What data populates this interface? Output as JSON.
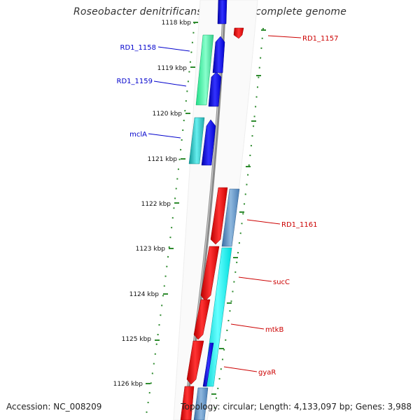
{
  "title": "Roseobacter denitrificans OCh 114, complete genome",
  "accession": "Accession: NC_008209",
  "stats": "Topology: circular; Length: 4,133,097 bp; Genes: 3,988",
  "colors": {
    "backbone": "#8a8a8a",
    "tick": "#2e8b2e",
    "forward_label": "#0000cc",
    "reverse_label": "#cc0000"
  },
  "ruler_labels": [
    "1118 kbp",
    "1119 kbp",
    "1120 kbp",
    "1121 kbp",
    "1122 kbp",
    "1123 kbp",
    "1124 kbp",
    "1125 kbp",
    "1126 kbp"
  ],
  "gene_labels": [
    {
      "text": "RD1_1157",
      "strand": "reverse"
    },
    {
      "text": "RD1_1158",
      "strand": "forward"
    },
    {
      "text": "RD1_1159",
      "strand": "forward"
    },
    {
      "text": "mclA",
      "strand": "forward"
    },
    {
      "text": "RD1_1161",
      "strand": "reverse"
    },
    {
      "text": "sucC",
      "strand": "reverse"
    },
    {
      "text": "mtkB",
      "strand": "reverse"
    },
    {
      "text": "gyaR",
      "strand": "reverse"
    }
  ]
}
